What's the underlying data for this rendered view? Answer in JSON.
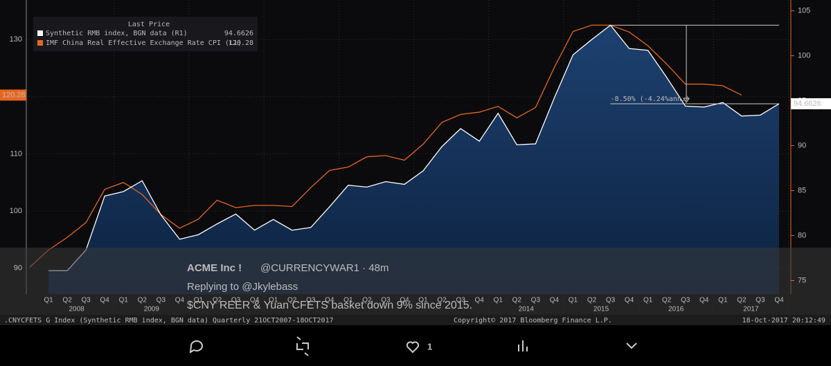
{
  "chart_data": {
    "type": "line",
    "legend_title": "Last Price",
    "categories": [
      null,
      "Q1",
      "Q2",
      "Q3",
      "Q4",
      "Q1",
      "Q2",
      "Q3",
      "Q4",
      "Q1",
      "Q2",
      "Q3",
      "Q4",
      "Q1",
      "Q2",
      "Q3",
      "Q4",
      "Q1",
      "Q2",
      "Q3",
      "Q4",
      "Q1",
      "Q2",
      "Q3",
      "Q4",
      "Q1",
      "Q2",
      "Q3",
      "Q4",
      "Q1",
      "Q2",
      "Q3",
      "Q4",
      "Q1",
      "Q2",
      "Q3",
      "Q4",
      "Q1",
      "Q2",
      "Q3",
      "Q4"
    ],
    "years": [
      "2008",
      "2009",
      null,
      null,
      null,
      null,
      "2014",
      "2015",
      "2016",
      "2017"
    ],
    "series": [
      {
        "name": "Synthetic RMB index, BGN data  (R1)",
        "color": "#ffffff",
        "axis": "y2",
        "area": true,
        "values": [
          null,
          76.1,
          76.1,
          78.4,
          84.4,
          84.9,
          86.1,
          82.3,
          79.6,
          80.1,
          81.3,
          82.4,
          80.6,
          81.8,
          80.6,
          80.9,
          83.2,
          85.6,
          85.4,
          86.0,
          85.7,
          87.2,
          89.9,
          91.9,
          90.5,
          93.6,
          90.1,
          90.2,
          95.3,
          100.1,
          101.8,
          103.4,
          100.8,
          100.6,
          97.6,
          94.4,
          94.3,
          94.8,
          93.3,
          93.4,
          94.6626
        ]
      },
      {
        "name": "IMF China Real Effective Exchange Rate CPI  (L1)",
        "color": "#e8661f",
        "values": [
          90.2,
          93.2,
          95.4,
          98.0,
          103.8,
          105.0,
          102.9,
          99.4,
          97.0,
          98.6,
          101.9,
          100.6,
          101.0,
          101.0,
          100.8,
          104.1,
          107.1,
          107.7,
          109.5,
          109.7,
          108.9,
          111.7,
          115.5,
          116.9,
          117.3,
          118.3,
          116.3,
          118.1,
          125.1,
          131.4,
          132.5,
          132.5,
          131.3,
          128.9,
          125.7,
          122.2,
          122.2,
          121.9,
          120.28,
          null,
          null
        ]
      }
    ],
    "ylim": [
      85.5,
      136.9
    ],
    "yticks": [
      90,
      100,
      110,
      120,
      130
    ],
    "y2lim": [
      73.5,
      106.2
    ],
    "y2ticks": [
      75,
      80,
      85,
      90,
      95,
      100,
      105
    ],
    "grid": true,
    "annotation": "-8.50% (-4.24%ann.)",
    "footer_left": ".CNYCFETS G Index (Synthetic RMB index, BGN data)  Quarterly 21OCT2007-18OCT2017",
    "footer_mid": "Copyright© 2017 Bloomberg Finance L.P.",
    "footer_right": "18-Oct-2017 20:12:49"
  },
  "tweet": {
    "name": "ACME Inc !",
    "handle": "@CURRENCYWAR1 · 48m",
    "reply": "Replying to @Jkylebass",
    "text": "$CNY REER & Yuan CFETS basket down 9% since 2015.",
    "likes": "1"
  }
}
